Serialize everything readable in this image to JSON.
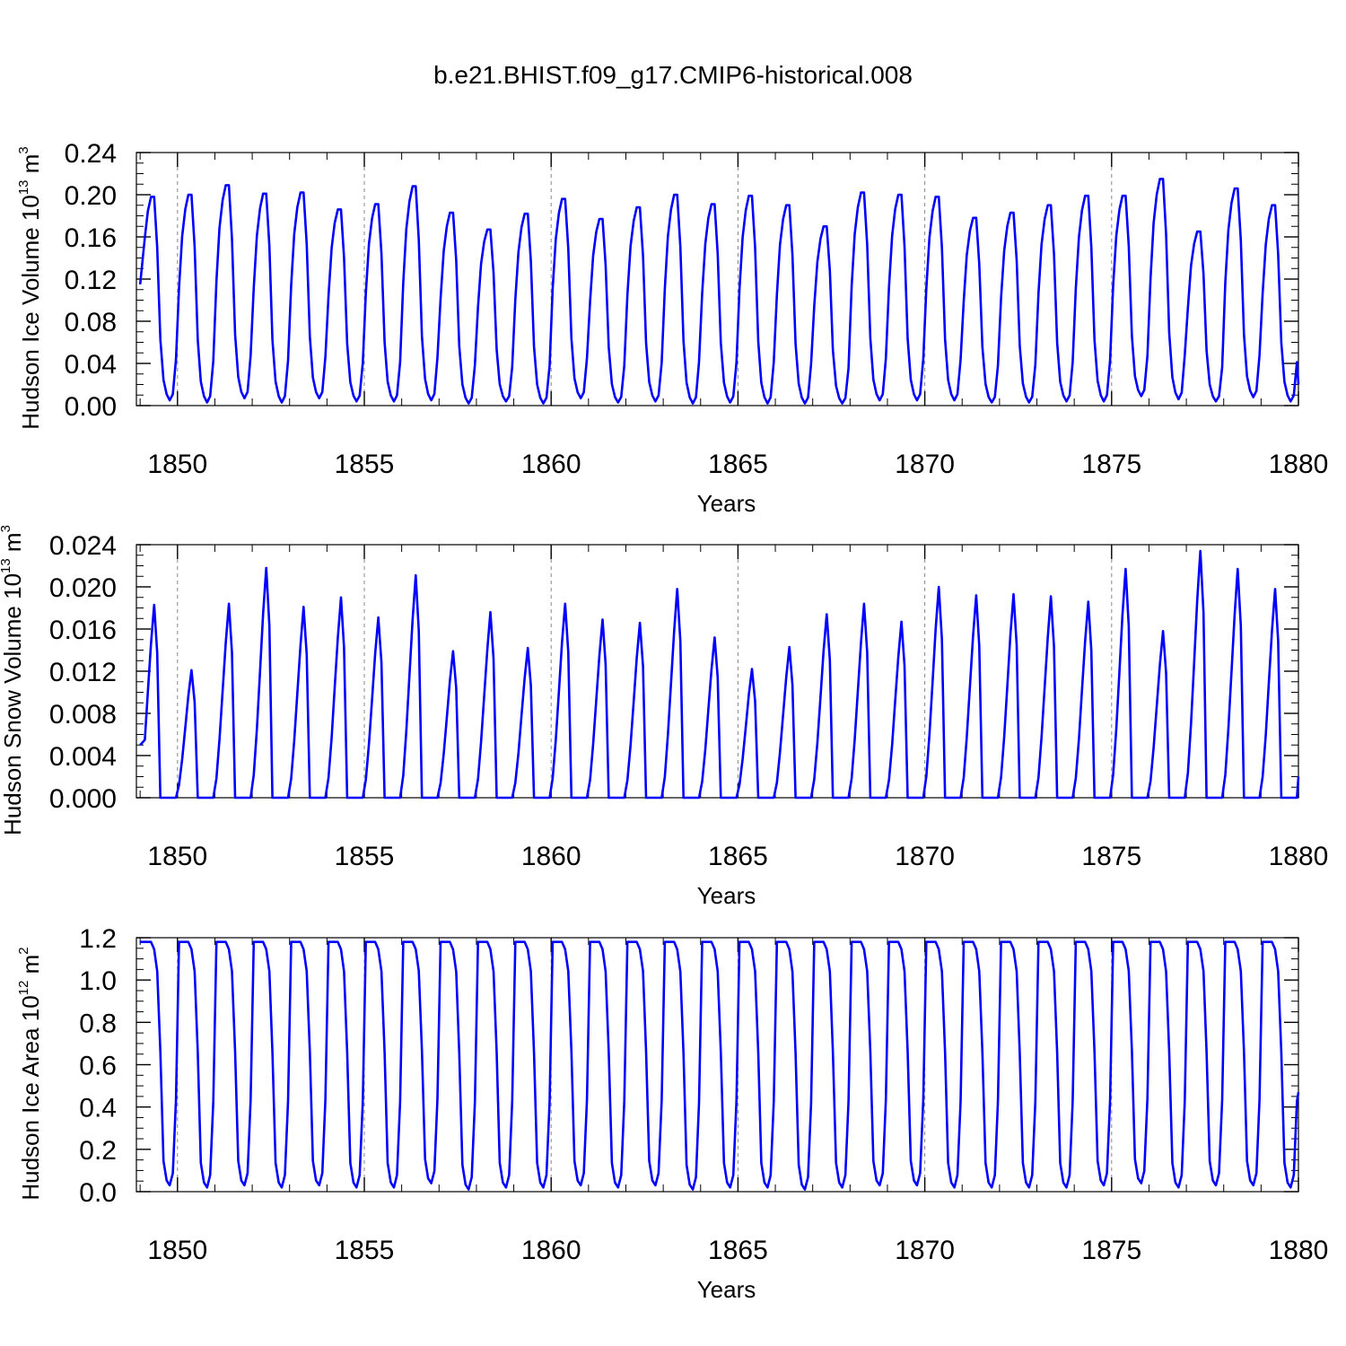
{
  "figure": {
    "title": "b.e21.BHIST.f09_g17.CMIP6-historical.008"
  },
  "colors": {
    "series": "#0000ff",
    "axis": "#000000",
    "refline": "#888888"
  },
  "chart_data": [
    {
      "type": "line",
      "xlabel": "Years",
      "ylabel": "Hudson Ice Volume 10",
      "ylabel_exp": "13",
      "ylabel_unit": " m",
      "ylabel_unit_exp": "3",
      "xlim": [
        1848.9,
        1880
      ],
      "ylim": [
        0,
        0.24
      ],
      "xticks": [
        1850,
        1855,
        1860,
        1865,
        1870,
        1875,
        1880
      ],
      "xtick_labels": [
        "1850",
        "1855",
        "1860",
        "1865",
        "1870",
        "1875",
        "1880"
      ],
      "yticks": [
        0,
        0.04,
        0.08,
        0.12,
        0.16,
        0.2,
        0.24
      ],
      "ytick_labels": [
        "0.00",
        "0.04",
        "0.08",
        "0.12",
        "0.16",
        "0.20",
        "0.24"
      ],
      "reference_lines": {
        "x": [
          1850,
          1855,
          1860,
          1865,
          1870,
          1875
        ],
        "style": "dashed"
      },
      "series": [
        {
          "start": 1849.0,
          "yearly_max": [
            0.198,
            0.2,
            0.209,
            0.201,
            0.202,
            0.186,
            0.191,
            0.208,
            0.183,
            0.167,
            0.182,
            0.196,
            0.177,
            0.188,
            0.2,
            0.191,
            0.199,
            0.19,
            0.17,
            0.202,
            0.2,
            0.198,
            0.178,
            0.183,
            0.19,
            0.199,
            0.199,
            0.215,
            0.165,
            0.206,
            0.19
          ],
          "yearly_min": [
            0.005,
            0.003,
            0.007,
            0.003,
            0.007,
            0.004,
            0.004,
            0.005,
            0.002,
            0.004,
            0.002,
            0.007,
            0.003,
            0.004,
            0.002,
            0.003,
            0.002,
            0.002,
            0.002,
            0.005,
            0.005,
            0.005,
            0.003,
            0.003,
            0.004,
            0.004,
            0.009,
            0.006,
            0.004,
            0.008,
            0.004
          ],
          "first_value": 0.115,
          "last_value": 0.02
        }
      ]
    },
    {
      "type": "line",
      "xlabel": "Years",
      "ylabel": "Hudson Snow Volume 10",
      "ylabel_exp": "13",
      "ylabel_unit": " m",
      "ylabel_unit_exp": "3",
      "xlim": [
        1848.9,
        1880
      ],
      "ylim": [
        0,
        0.024
      ],
      "xticks": [
        1850,
        1855,
        1860,
        1865,
        1870,
        1875,
        1880
      ],
      "xtick_labels": [
        "1850",
        "1855",
        "1860",
        "1865",
        "1870",
        "1875",
        "1880"
      ],
      "yticks": [
        0,
        0.004,
        0.008,
        0.012,
        0.016,
        0.02,
        0.024
      ],
      "ytick_labels": [
        "0.000",
        "0.004",
        "0.008",
        "0.012",
        "0.016",
        "0.020",
        "0.024"
      ],
      "reference_lines": {
        "x": [
          1850,
          1855,
          1860,
          1865,
          1870,
          1875
        ],
        "style": "dashed"
      },
      "series": [
        {
          "start": 1849.0,
          "yearly_max": [
            0.0183,
            0.0121,
            0.0184,
            0.0218,
            0.0181,
            0.019,
            0.0171,
            0.0211,
            0.0139,
            0.0176,
            0.0142,
            0.0184,
            0.0169,
            0.0166,
            0.0198,
            0.0152,
            0.0122,
            0.0143,
            0.0174,
            0.0184,
            0.0167,
            0.02,
            0.0192,
            0.0193,
            0.0191,
            0.0186,
            0.0217,
            0.0158,
            0.0234,
            0.0217,
            0.0198
          ],
          "first_value": 0.005,
          "last_value": 0.002
        }
      ]
    },
    {
      "type": "line",
      "xlabel": "Years",
      "ylabel": "Hudson Ice Area 10",
      "ylabel_exp": "12",
      "ylabel_unit": " m",
      "ylabel_unit_exp": "2",
      "xlim": [
        1848.9,
        1880
      ],
      "ylim": [
        0,
        1.2
      ],
      "xticks": [
        1850,
        1855,
        1860,
        1865,
        1870,
        1875,
        1880
      ],
      "xtick_labels": [
        "1850",
        "1855",
        "1860",
        "1865",
        "1870",
        "1875",
        "1880"
      ],
      "yticks": [
        0,
        0.2,
        0.4,
        0.6,
        0.8,
        1.0,
        1.2
      ],
      "ytick_labels": [
        "0.0",
        "0.2",
        "0.4",
        "0.6",
        "0.8",
        "1.0",
        "1.2"
      ],
      "reference_lines": {
        "x": [
          1850,
          1855,
          1860,
          1865,
          1870,
          1875
        ],
        "style": "dashed"
      },
      "series": [
        {
          "start": 1849.0,
          "yearly_max": [
            1.18,
            1.18,
            1.18,
            1.18,
            1.18,
            1.18,
            1.18,
            1.18,
            1.18,
            1.18,
            1.18,
            1.18,
            1.18,
            1.18,
            1.18,
            1.18,
            1.18,
            1.18,
            1.18,
            1.18,
            1.18,
            1.18,
            1.18,
            1.18,
            1.18,
            1.18,
            1.18,
            1.18,
            1.18,
            1.18,
            1.18
          ],
          "yearly_min": [
            0.03,
            0.02,
            0.03,
            0.02,
            0.03,
            0.02,
            0.02,
            0.04,
            0.01,
            0.02,
            0.02,
            0.03,
            0.02,
            0.03,
            0.01,
            0.02,
            0.02,
            0.01,
            0.02,
            0.03,
            0.03,
            0.02,
            0.02,
            0.02,
            0.02,
            0.03,
            0.04,
            0.02,
            0.03,
            0.03,
            0.02
          ],
          "first_value": 1.18,
          "last_value": 0.47
        }
      ]
    }
  ]
}
